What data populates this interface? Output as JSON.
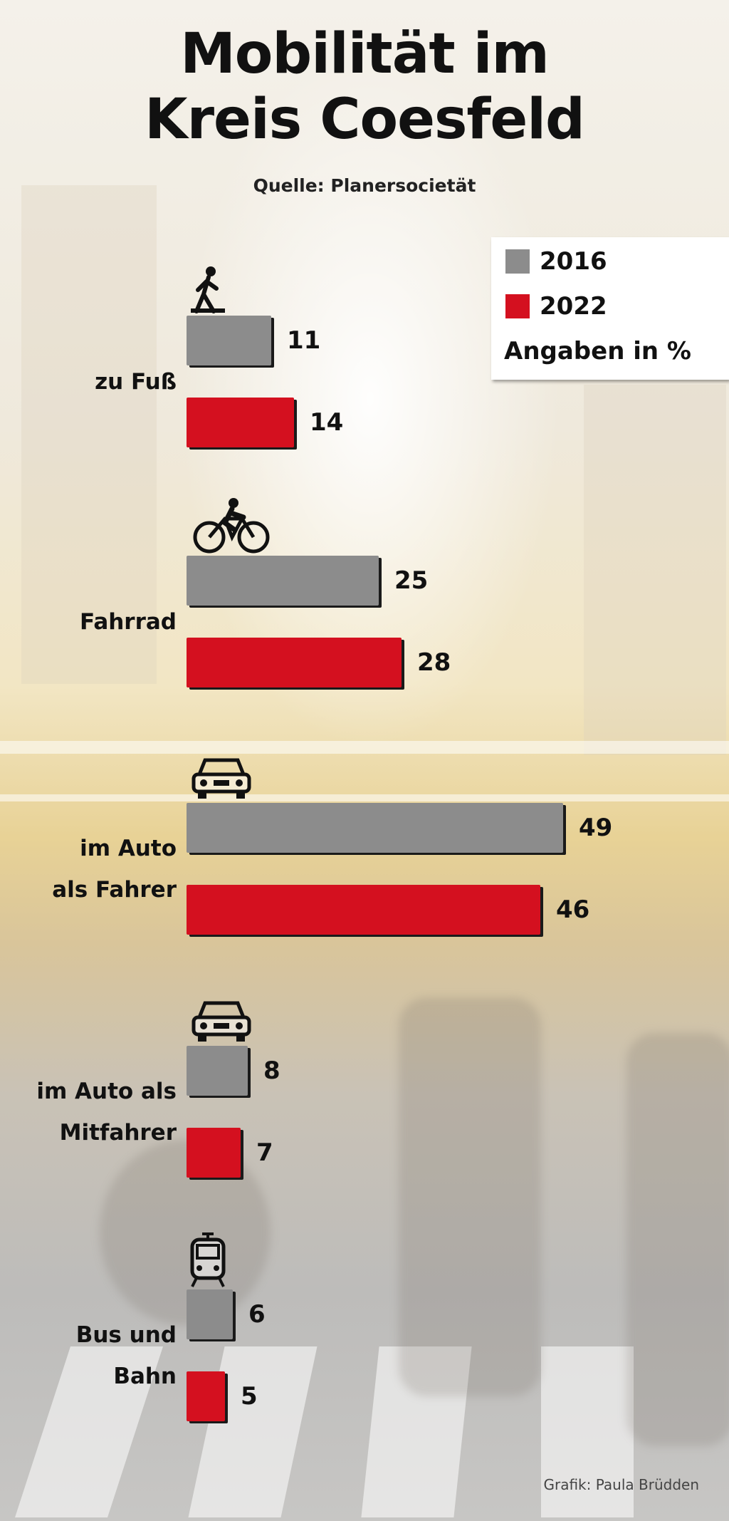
{
  "colors": {
    "y2016": "#8c8c8c",
    "y2022": "#d4101f"
  },
  "header": {
    "title_line1": "Mobilität im",
    "title_line2": "Kreis Coesfeld",
    "source": "Quelle: Planersocietät"
  },
  "legend": {
    "item_2016": "2016",
    "item_2022": "2022",
    "unit": "Angaben in %"
  },
  "chart_data": {
    "type": "bar",
    "orientation": "horizontal",
    "title": "Mobilität im Kreis Coesfeld",
    "categories": [
      "zu Fuß",
      "Fahrrad",
      "im Auto als Fahrer",
      "im Auto als Mitfahrer",
      "Bus und Bahn"
    ],
    "category_lines": [
      [
        "zu Fuß"
      ],
      [
        "Fahrrad"
      ],
      [
        "im Auto",
        "als Fahrer"
      ],
      [
        "im Auto als",
        "Mitfahrer"
      ],
      [
        "Bus und",
        "Bahn"
      ]
    ],
    "icons": [
      "pedestrian-icon",
      "bicycle-icon",
      "car-icon",
      "car-icon",
      "tram-icon"
    ],
    "series": [
      {
        "name": "2016",
        "color": "#8c8c8c",
        "values": [
          11,
          25,
          49,
          8,
          6
        ]
      },
      {
        "name": "2022",
        "color": "#d4101f",
        "values": [
          14,
          28,
          46,
          7,
          5
        ]
      }
    ],
    "unit": "Angaben in %",
    "grid": false,
    "legend_position": "top-right"
  },
  "credit": "Grafik: Paula Brüdden"
}
